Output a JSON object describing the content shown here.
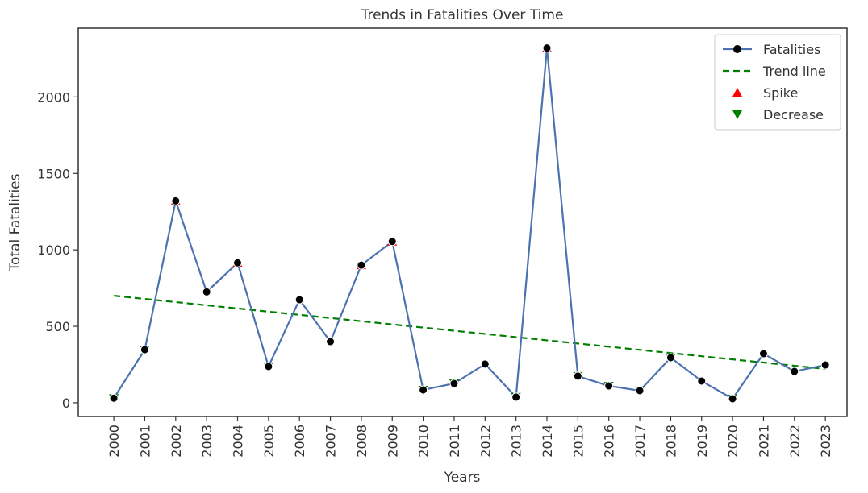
{
  "chart_data": {
    "type": "line",
    "title": "Trends in Fatalities Over Time",
    "xlabel": "Years",
    "ylabel": "Total Fatalities",
    "x": [
      2000,
      2001,
      2002,
      2003,
      2004,
      2005,
      2006,
      2007,
      2008,
      2009,
      2010,
      2011,
      2012,
      2013,
      2014,
      2015,
      2016,
      2017,
      2018,
      2019,
      2020,
      2021,
      2022,
      2023
    ],
    "series": [
      {
        "name": "Fatalities",
        "color": "#4c72b0",
        "values": [
          30,
          347,
          1320,
          725,
          915,
          237,
          674,
          400,
          900,
          1055,
          84,
          126,
          253,
          37,
          2320,
          174,
          110,
          79,
          295,
          142,
          26,
          321,
          205,
          247
        ]
      },
      {
        "name": "Trend line",
        "color": "#008000",
        "x": [
          2000,
          2023
        ],
        "values": [
          700,
          221
        ]
      },
      {
        "name": "Spike",
        "color": "#ff0000",
        "x": [
          2002,
          2004,
          2008,
          2009,
          2014
        ],
        "values": [
          1320,
          915,
          900,
          1055,
          2320
        ]
      },
      {
        "name": "Decrease",
        "color": "#008000",
        "x": [
          2000,
          2001,
          2005,
          2010,
          2011,
          2013,
          2015,
          2016,
          2017,
          2018,
          2020
        ],
        "values": [
          30,
          347,
          237,
          84,
          126,
          37,
          174,
          110,
          79,
          295,
          26
        ]
      }
    ],
    "xlim": [
      1998.85,
      2023.7
    ],
    "xticks": [
      2000,
      2001,
      2002,
      2003,
      2004,
      2005,
      2006,
      2007,
      2008,
      2009,
      2010,
      2011,
      2012,
      2013,
      2014,
      2015,
      2016,
      2017,
      2018,
      2019,
      2020,
      2021,
      2022,
      2023
    ],
    "ylim": [
      -90,
      2450
    ],
    "yticks": [
      0,
      500,
      1000,
      1500,
      2000
    ],
    "legend": "upper right"
  }
}
